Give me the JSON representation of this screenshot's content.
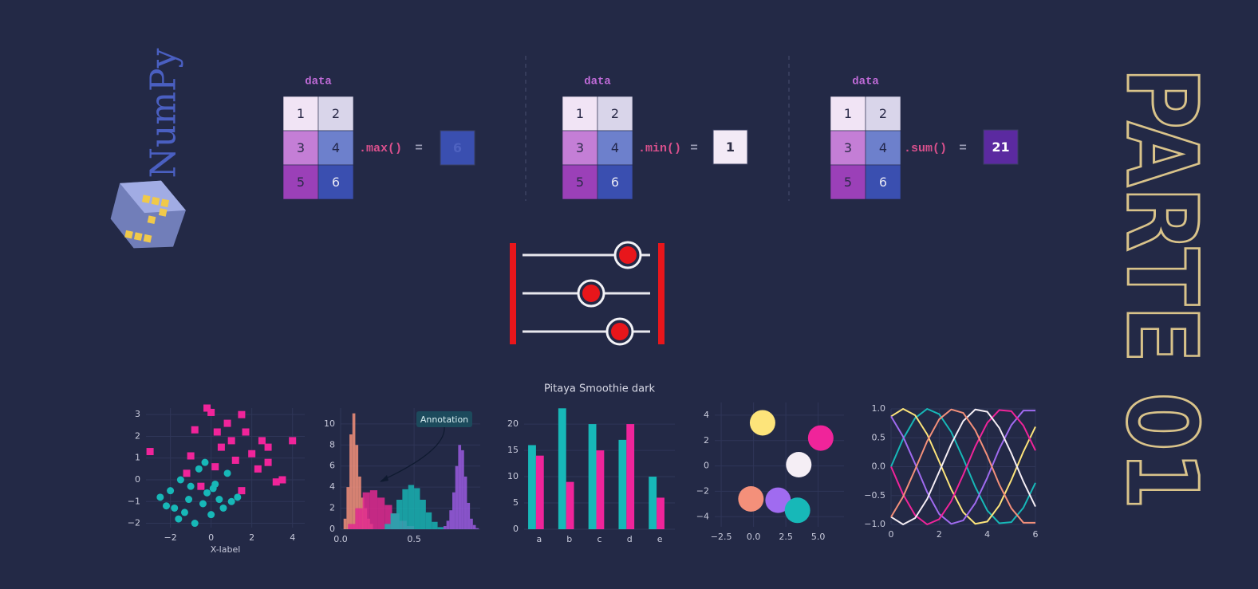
{
  "logo": {
    "text": "NumPy"
  },
  "operations": [
    {
      "label": "data",
      "matrix": [
        [
          1,
          2
        ],
        [
          3,
          4
        ],
        [
          5,
          6
        ]
      ],
      "method": ".max()",
      "equals": "=",
      "result": 6
    },
    {
      "label": "data",
      "matrix": [
        [
          1,
          2
        ],
        [
          3,
          4
        ],
        [
          5,
          6
        ]
      ],
      "method": ".min()",
      "equals": "=",
      "result": 1
    },
    {
      "label": "data",
      "matrix": [
        [
          1,
          2
        ],
        [
          3,
          4
        ],
        [
          5,
          6
        ]
      ],
      "method": ".sum()",
      "equals": "=",
      "result": 21
    }
  ],
  "banner": {
    "text": "PARTE 01"
  },
  "chart_data": [
    {
      "type": "scatter",
      "xlabel": "X-label",
      "grid": true,
      "xlim": [
        -3.2,
        4.6
      ],
      "ylim": [
        -2.2,
        3.3
      ],
      "xticks": [
        {
          "value": -2,
          "label": "−2"
        },
        0,
        2,
        4
      ],
      "yticks": [
        {
          "value": -2,
          "label": "−2"
        },
        {
          "value": -1,
          "label": "−1"
        },
        0,
        1,
        2,
        3
      ],
      "series": [
        {
          "color": "#f0249a",
          "marker": "s",
          "x": [
            -3,
            -1.2,
            -1,
            -0.8,
            -0.2,
            0,
            0.3,
            0.5,
            0.8,
            1,
            1.2,
            1.5,
            1.7,
            2,
            2.3,
            2.5,
            2.8,
            3.2,
            3.5,
            4,
            0.2,
            1.5,
            2.8,
            -0.5
          ],
          "y": [
            1.3,
            0.3,
            1.1,
            2.3,
            3.3,
            3.1,
            2.2,
            1.5,
            2.6,
            1.8,
            0.9,
            3,
            2.2,
            1.2,
            0.5,
            1.8,
            0.8,
            -0.1,
            0,
            1.8,
            0.6,
            -0.5,
            1.5,
            -0.3
          ]
        },
        {
          "color": "#17b8b8",
          "marker": "o",
          "x": [
            -2.5,
            -2.2,
            -2,
            -1.8,
            -1.5,
            -1.3,
            -1.1,
            -1,
            -0.8,
            -0.6,
            -0.4,
            -0.2,
            0,
            0.2,
            0.4,
            0.6,
            0.8,
            1,
            1.3,
            -1.6,
            -0.3,
            0.1
          ],
          "y": [
            -0.8,
            -1.2,
            -0.5,
            -1.3,
            0,
            -1.5,
            -0.9,
            -0.3,
            -2,
            0.5,
            -1.1,
            -0.6,
            -1.6,
            -0.2,
            -0.9,
            -1.3,
            0.3,
            -1,
            -0.8,
            -1.8,
            0.8,
            -0.4
          ]
        }
      ]
    },
    {
      "type": "histogram",
      "annotation": "Annotation",
      "grid": true,
      "xlim": [
        0,
        0.95
      ],
      "ylim": [
        0,
        11.5
      ],
      "xticks": [
        {
          "value": 0,
          "label": "0.0"
        },
        {
          "value": 0.5,
          "label": "0.5"
        }
      ],
      "yticks": [
        0,
        2,
        4,
        6,
        8,
        10
      ],
      "series": [
        {
          "color": "#f4907a",
          "bins": [
            0.02,
            0.04,
            0.06,
            0.08,
            0.1,
            0.12,
            0.14,
            0.16,
            0.18,
            0.2,
            0.22
          ],
          "counts": [
            1,
            4,
            9,
            11,
            8,
            5,
            3,
            2,
            1,
            0.5
          ]
        },
        {
          "color": "#e0298f",
          "bins": [
            0.05,
            0.1,
            0.15,
            0.2,
            0.25,
            0.3,
            0.35,
            0.4,
            0.45,
            0.5
          ],
          "counts": [
            0.5,
            2,
            3.5,
            3.7,
            3,
            2.3,
            1.5,
            0.8,
            0.3
          ]
        },
        {
          "color": "#17b3b3",
          "bins": [
            0.3,
            0.34,
            0.38,
            0.42,
            0.46,
            0.5,
            0.54,
            0.58,
            0.62,
            0.66,
            0.7
          ],
          "counts": [
            0.5,
            1.5,
            2.8,
            3.8,
            4.2,
            3.9,
            2.8,
            1.6,
            0.7,
            0.2
          ]
        },
        {
          "color": "#9a5be0",
          "bins": [
            0.7,
            0.72,
            0.74,
            0.76,
            0.78,
            0.8,
            0.82,
            0.84,
            0.86,
            0.88,
            0.9,
            0.92,
            0.94
          ],
          "counts": [
            0.3,
            0.8,
            1.8,
            3.5,
            6,
            8,
            7.5,
            5,
            2.5,
            1,
            0.4,
            0.1
          ]
        }
      ]
    },
    {
      "type": "bar",
      "title": "Pitaya Smoothie dark",
      "grid": true,
      "categories": [
        "a",
        "b",
        "c",
        "d",
        "e"
      ],
      "ylim": [
        0,
        23.5
      ],
      "yticks": [
        0,
        5,
        10,
        15,
        20
      ],
      "series": [
        {
          "color": "#17b8b8",
          "values": [
            16,
            23,
            20,
            17,
            10
          ]
        },
        {
          "color": "#f0249a",
          "values": [
            14,
            9,
            15,
            20,
            6
          ]
        }
      ]
    },
    {
      "type": "scatter",
      "grid": true,
      "xlim": [
        -3,
        7
      ],
      "ylim": [
        -4.8,
        5
      ],
      "xticks": [
        {
          "value": -2.5,
          "label": "−2.5"
        },
        {
          "value": 0,
          "label": "0.0"
        },
        {
          "value": 2.5,
          "label": "2.5"
        },
        {
          "value": 5,
          "label": "5.0"
        }
      ],
      "yticks": [
        {
          "value": -4,
          "label": "−4"
        },
        {
          "value": -2,
          "label": "−2"
        },
        0,
        2,
        4
      ],
      "series": [
        {
          "x": [
            0.7,
            5.2,
            3.5,
            -0.2,
            1.9,
            3.4
          ],
          "y": [
            3.4,
            2.2,
            0.1,
            -2.6,
            -2.7,
            -3.5
          ],
          "sizes": [
            16,
            16,
            16,
            16,
            16,
            16
          ],
          "colors": [
            "#fde47a",
            "#f0249a",
            "#f5eef5",
            "#f4907a",
            "#a06bf0",
            "#17b8b8"
          ]
        }
      ]
    },
    {
      "type": "line",
      "grid": true,
      "xlim": [
        0,
        6
      ],
      "ylim": [
        -1,
        1
      ],
      "xticks": [
        0,
        2,
        4,
        6
      ],
      "yticks": [
        {
          "value": -1,
          "label": "−1.0"
        },
        {
          "value": -0.5,
          "label": "−0.5"
        },
        {
          "value": 0,
          "label": "0.0"
        },
        {
          "value": 0.5,
          "label": "0.5"
        },
        {
          "value": 1,
          "label": "1.0"
        }
      ],
      "x": [
        0,
        0.5,
        1,
        1.5,
        2,
        2.5,
        3,
        3.5,
        4,
        4.5,
        5,
        5.5,
        6
      ],
      "series": [
        {
          "color": "#17b8b8",
          "values": [
            0,
            0.48,
            0.84,
            1.0,
            0.91,
            0.6,
            0.14,
            -0.35,
            -0.76,
            -0.98,
            -0.96,
            -0.71,
            -0.28
          ]
        },
        {
          "color": "#fde47a",
          "values": [
            0.87,
            1.0,
            0.89,
            0.56,
            0.09,
            -0.39,
            -0.79,
            -0.99,
            -0.95,
            -0.67,
            -0.23,
            0.26,
            0.69
          ]
        },
        {
          "color": "#a06bf0",
          "values": [
            0.87,
            0.52,
            0.05,
            -0.44,
            -0.82,
            -0.99,
            -0.93,
            -0.63,
            -0.19,
            0.31,
            0.72,
            0.97,
            0.97
          ]
        },
        {
          "color": "#f0249a",
          "values": [
            0,
            -0.48,
            -0.84,
            -1.0,
            -0.91,
            -0.6,
            -0.14,
            0.35,
            0.76,
            0.98,
            0.96,
            0.71,
            0.28
          ]
        },
        {
          "color": "#f5eef5",
          "values": [
            -0.87,
            -1.0,
            -0.89,
            -0.56,
            -0.09,
            0.39,
            0.79,
            0.99,
            0.95,
            0.67,
            0.23,
            -0.26,
            -0.69
          ]
        },
        {
          "color": "#f4907a",
          "values": [
            -0.87,
            -0.52,
            -0.05,
            0.44,
            0.82,
            0.99,
            0.93,
            0.63,
            0.19,
            -0.31,
            -0.72,
            -0.97,
            -0.97
          ]
        }
      ]
    }
  ]
}
